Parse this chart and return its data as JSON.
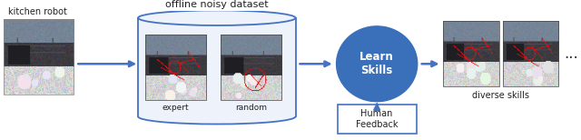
{
  "bg_color": "#ffffff",
  "elements": {
    "kitchen_robot_label": "kitchen robot",
    "offline_dataset_label": "offline noisy dataset",
    "expert_label": "expert",
    "random_label": "random",
    "learn_skills_label": "Learn\nSkills",
    "human_feedback_label": "Human\nFeedback",
    "diverse_skills_label": "diverse skills",
    "ellipsis_label": "..."
  },
  "colors": {
    "arrow": "#4472c4",
    "cylinder_edge": "#4472c4",
    "cylinder_fill": "#eef2fa",
    "learn_skills_circle": "#3a6fba",
    "learn_skills_text": "#ffffff",
    "human_feedback_box": "#ffffff",
    "human_feedback_border": "#4472c4",
    "label_text": "#222222"
  },
  "layout": {
    "fig_width": 6.4,
    "fig_height": 1.54,
    "dpi": 100
  }
}
